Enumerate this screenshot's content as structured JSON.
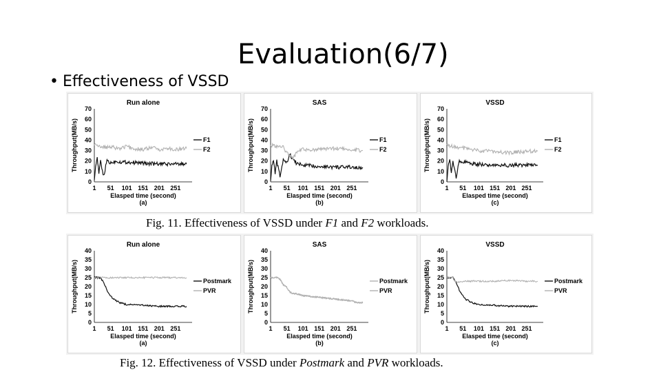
{
  "slide": {
    "title": "Evaluation(6/7)",
    "bullet": "Effectiveness of VSSD"
  },
  "fig11": {
    "caption_pre": "Fig. 11. Effectiveness of VSSD under ",
    "caption_w1": "F1",
    "caption_mid": " and ",
    "caption_w2": "F2",
    "caption_post": " workloads."
  },
  "fig12": {
    "caption_pre": "Fig. 12. Effectiveness of VSSD under ",
    "caption_w1": "Postmark",
    "caption_mid": " and ",
    "caption_w2": "PVR",
    "caption_post": " workloads."
  },
  "colors": {
    "dark": "#111111",
    "light": "#b0b0b0",
    "panel_border": "#d9d9d9"
  },
  "chart_data": [
    {
      "type": "line",
      "figure": "11",
      "title": "Run alone",
      "sublabel": "(a)",
      "xlabel": "Elasped time (second)",
      "ylabel": "Throughput(MB/s)",
      "ylim": [
        0,
        70
      ],
      "yticks": [
        "0",
        "10",
        "20",
        "30",
        "40",
        "50",
        "60",
        "70"
      ],
      "xlim": [
        1,
        281
      ],
      "xticks": [
        "1",
        "51",
        "101",
        "151",
        "201",
        "251"
      ],
      "legend": [
        "F1",
        "F2"
      ],
      "series": [
        {
          "name": "F1",
          "color": "dark",
          "x": [
            1,
            5,
            10,
            15,
            20,
            30,
            40,
            50,
            60,
            70,
            80,
            100,
            150,
            200,
            250,
            285
          ],
          "values": [
            0,
            15,
            22,
            8,
            20,
            5,
            21,
            18,
            19,
            20,
            19,
            19,
            18,
            17,
            17,
            17
          ]
        },
        {
          "name": "F2",
          "color": "light",
          "x": [
            1,
            20,
            40,
            60,
            80,
            100,
            120,
            150,
            180,
            200,
            230,
            250,
            285
          ],
          "values": [
            35,
            34,
            33,
            33,
            32,
            34,
            32,
            31,
            33,
            31,
            32,
            31,
            32
          ]
        }
      ]
    },
    {
      "type": "line",
      "figure": "11",
      "title": "SAS",
      "sublabel": "(b)",
      "xlabel": "Elasped time (second)",
      "ylabel": "Throughput(MB/s)",
      "ylim": [
        0,
        70
      ],
      "yticks": [
        "0",
        "10",
        "20",
        "30",
        "40",
        "50",
        "60",
        "70"
      ],
      "xlim": [
        1,
        281
      ],
      "xticks": [
        "1",
        "51",
        "101",
        "151",
        "201",
        "251"
      ],
      "legend": [
        "F1",
        "F2"
      ],
      "series": [
        {
          "name": "F1",
          "color": "dark",
          "x": [
            1,
            5,
            10,
            15,
            20,
            30,
            40,
            50,
            60,
            70,
            80,
            100,
            150,
            200,
            250,
            285
          ],
          "values": [
            0,
            15,
            22,
            8,
            20,
            5,
            21,
            18,
            26,
            22,
            18,
            16,
            15,
            14,
            14,
            14
          ]
        },
        {
          "name": "F2",
          "color": "light",
          "x": [
            1,
            20,
            40,
            50,
            60,
            70,
            80,
            100,
            150,
            200,
            250,
            285
          ],
          "values": [
            35,
            34,
            33,
            28,
            25,
            22,
            28,
            31,
            31,
            32,
            31,
            30
          ]
        }
      ]
    },
    {
      "type": "line",
      "figure": "11",
      "title": "VSSD",
      "sublabel": "(c)",
      "xlabel": "Elasped time (second)",
      "ylabel": "Throughput(MB/s)",
      "ylim": [
        0,
        70
      ],
      "yticks": [
        "0",
        "10",
        "20",
        "30",
        "40",
        "50",
        "60",
        "70"
      ],
      "xlim": [
        1,
        281
      ],
      "xticks": [
        "1",
        "51",
        "101",
        "151",
        "201",
        "251"
      ],
      "legend": [
        "F1",
        "F2"
      ],
      "series": [
        {
          "name": "F1",
          "color": "dark",
          "x": [
            1,
            5,
            10,
            15,
            20,
            30,
            40,
            50,
            60,
            70,
            80,
            100,
            150,
            200,
            250,
            285
          ],
          "values": [
            0,
            15,
            22,
            8,
            20,
            5,
            21,
            18,
            19,
            18,
            17,
            17,
            16,
            16,
            16,
            16
          ]
        },
        {
          "name": "F2",
          "color": "light",
          "x": [
            1,
            20,
            40,
            60,
            80,
            100,
            150,
            200,
            250,
            285
          ],
          "values": [
            35,
            34,
            33,
            32,
            31,
            30,
            29,
            28,
            29,
            30
          ]
        }
      ]
    },
    {
      "type": "line",
      "figure": "12",
      "title": "Run alone",
      "sublabel": "(a)",
      "xlabel": "Elasped time (second)",
      "ylabel": "Throughput(MB/s)",
      "ylim": [
        0,
        40
      ],
      "yticks": [
        "0",
        "5",
        "10",
        "15",
        "20",
        "25",
        "30",
        "35",
        "40"
      ],
      "xlim": [
        1,
        281
      ],
      "xticks": [
        "1",
        "51",
        "101",
        "151",
        "201",
        "251"
      ],
      "legend": [
        "Postmark",
        "PVR"
      ],
      "series": [
        {
          "name": "Postmark",
          "color": "dark",
          "x": [
            1,
            20,
            30,
            40,
            50,
            60,
            70,
            80,
            100,
            150,
            200,
            250,
            285
          ],
          "values": [
            25,
            25,
            22,
            18,
            15,
            13,
            12,
            11,
            10,
            9.5,
            9,
            9,
            9
          ]
        },
        {
          "name": "PVR",
          "color": "light",
          "x": [
            1,
            285
          ],
          "values": [
            25,
            25
          ]
        }
      ]
    },
    {
      "type": "line",
      "figure": "12",
      "title": "SAS",
      "sublabel": "(b)",
      "xlabel": "Elasped time (second)",
      "ylabel": "Throughput(MB/s)",
      "ylim": [
        0,
        40
      ],
      "yticks": [
        "0",
        "5",
        "10",
        "15",
        "20",
        "25",
        "30",
        "35",
        "40"
      ],
      "xlim": [
        1,
        281
      ],
      "xticks": [
        "1",
        "51",
        "101",
        "151",
        "201",
        "251"
      ],
      "legend": [
        "Postmark",
        "PVR"
      ],
      "series": [
        {
          "name": "Postmark",
          "color": "light",
          "x": [
            1,
            20,
            30,
            40,
            50,
            60,
            70,
            80,
            100,
            150,
            200,
            250,
            270,
            285
          ],
          "values": [
            25,
            25,
            24,
            21,
            20,
            17,
            16,
            16,
            15,
            14,
            13,
            12,
            11,
            11
          ]
        },
        {
          "name": "PVR",
          "color": "light",
          "x": [
            1,
            20,
            30,
            40,
            50,
            60,
            70,
            80,
            100,
            150,
            200,
            250,
            270,
            285
          ],
          "values": [
            25,
            25,
            24,
            21,
            20,
            17,
            16,
            16,
            15,
            14,
            13,
            12,
            11,
            11
          ]
        }
      ]
    },
    {
      "type": "line",
      "figure": "12",
      "title": "VSSD",
      "sublabel": "(c)",
      "xlabel": "Elasped time (second)",
      "ylabel": "Throughput(MB/s)",
      "ylim": [
        0,
        40
      ],
      "yticks": [
        "0",
        "5",
        "10",
        "15",
        "20",
        "25",
        "30",
        "35",
        "40"
      ],
      "xlim": [
        1,
        281
      ],
      "xticks": [
        "1",
        "51",
        "101",
        "151",
        "201",
        "251"
      ],
      "legend": [
        "Postmark",
        "PVR"
      ],
      "series": [
        {
          "name": "Postmark",
          "color": "dark",
          "x": [
            1,
            20,
            30,
            40,
            50,
            60,
            70,
            80,
            100,
            150,
            200,
            250,
            285
          ],
          "values": [
            25,
            25,
            22,
            18,
            15,
            13,
            12,
            11,
            10,
            9.5,
            9,
            9,
            9
          ]
        },
        {
          "name": "PVR",
          "color": "light",
          "x": [
            1,
            20,
            25,
            30,
            40,
            60,
            100,
            150,
            200,
            250,
            285
          ],
          "values": [
            25,
            25,
            23,
            22.5,
            22.5,
            23,
            23,
            23,
            23.5,
            23,
            23
          ]
        }
      ]
    }
  ]
}
